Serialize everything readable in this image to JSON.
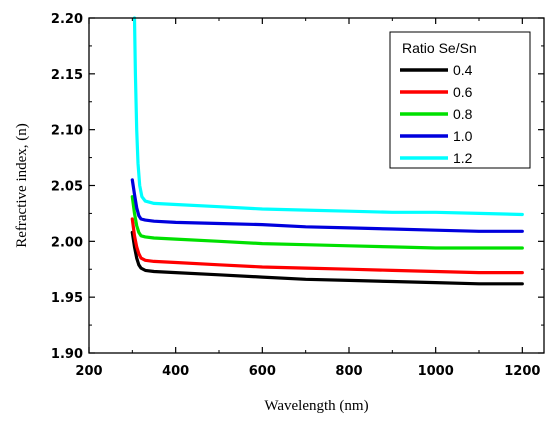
{
  "chart_data": {
    "type": "line",
    "title": "",
    "xlabel": "Wavelength (nm)",
    "ylabel": "Refractive index, (n)",
    "xlim": [
      200,
      1250
    ],
    "ylim": [
      1.9,
      2.2
    ],
    "xticks": [
      200,
      400,
      600,
      800,
      1000,
      1200
    ],
    "yticks": [
      1.9,
      1.95,
      2.0,
      2.05,
      2.1,
      2.15,
      2.2
    ],
    "x_tick_labels": [
      "200",
      "400",
      "600",
      "800",
      "1000",
      "1200"
    ],
    "y_tick_labels": [
      "1.90",
      "1.95",
      "2.00",
      "2.05",
      "2.10",
      "2.15",
      "2.20"
    ],
    "grid": false,
    "legend": {
      "title": "Ratio Se/Sn",
      "position": "top-right"
    },
    "series": [
      {
        "name": "0.4",
        "color": "#000000",
        "points": [
          [
            300,
            2.008
          ],
          [
            305,
            1.995
          ],
          [
            310,
            1.985
          ],
          [
            315,
            1.979
          ],
          [
            320,
            1.976
          ],
          [
            330,
            1.974
          ],
          [
            350,
            1.973
          ],
          [
            400,
            1.972
          ],
          [
            500,
            1.97
          ],
          [
            600,
            1.968
          ],
          [
            700,
            1.966
          ],
          [
            800,
            1.965
          ],
          [
            900,
            1.964
          ],
          [
            1000,
            1.963
          ],
          [
            1100,
            1.962
          ],
          [
            1200,
            1.962
          ]
        ]
      },
      {
        "name": "0.6",
        "color": "#ff0000",
        "points": [
          [
            300,
            2.02
          ],
          [
            305,
            2.005
          ],
          [
            310,
            1.995
          ],
          [
            315,
            1.989
          ],
          [
            320,
            1.985
          ],
          [
            330,
            1.983
          ],
          [
            350,
            1.982
          ],
          [
            400,
            1.981
          ],
          [
            500,
            1.979
          ],
          [
            600,
            1.977
          ],
          [
            700,
            1.976
          ],
          [
            800,
            1.975
          ],
          [
            900,
            1.974
          ],
          [
            1000,
            1.973
          ],
          [
            1100,
            1.972
          ],
          [
            1200,
            1.972
          ]
        ]
      },
      {
        "name": "0.8",
        "color": "#00e000",
        "points": [
          [
            300,
            2.04
          ],
          [
            305,
            2.025
          ],
          [
            310,
            2.014
          ],
          [
            315,
            2.008
          ],
          [
            320,
            2.005
          ],
          [
            330,
            2.004
          ],
          [
            350,
            2.003
          ],
          [
            400,
            2.002
          ],
          [
            500,
            2.0
          ],
          [
            600,
            1.998
          ],
          [
            700,
            1.997
          ],
          [
            800,
            1.996
          ],
          [
            900,
            1.995
          ],
          [
            1000,
            1.994
          ],
          [
            1100,
            1.994
          ],
          [
            1200,
            1.994
          ]
        ]
      },
      {
        "name": "1.0",
        "color": "#0000dd",
        "points": [
          [
            300,
            2.055
          ],
          [
            305,
            2.042
          ],
          [
            310,
            2.03
          ],
          [
            315,
            2.023
          ],
          [
            320,
            2.02
          ],
          [
            330,
            2.019
          ],
          [
            350,
            2.018
          ],
          [
            400,
            2.017
          ],
          [
            500,
            2.016
          ],
          [
            600,
            2.015
          ],
          [
            700,
            2.013
          ],
          [
            800,
            2.012
          ],
          [
            900,
            2.011
          ],
          [
            1000,
            2.01
          ],
          [
            1100,
            2.009
          ],
          [
            1200,
            2.009
          ]
        ]
      },
      {
        "name": "1.2",
        "color": "#00ffff",
        "points": [
          [
            305,
            2.2
          ],
          [
            307,
            2.15
          ],
          [
            310,
            2.1
          ],
          [
            313,
            2.07
          ],
          [
            317,
            2.05
          ],
          [
            322,
            2.04
          ],
          [
            330,
            2.036
          ],
          [
            350,
            2.034
          ],
          [
            400,
            2.033
          ],
          [
            500,
            2.031
          ],
          [
            600,
            2.029
          ],
          [
            700,
            2.028
          ],
          [
            800,
            2.027
          ],
          [
            900,
            2.026
          ],
          [
            1000,
            2.026
          ],
          [
            1100,
            2.025
          ],
          [
            1200,
            2.024
          ]
        ]
      }
    ]
  }
}
